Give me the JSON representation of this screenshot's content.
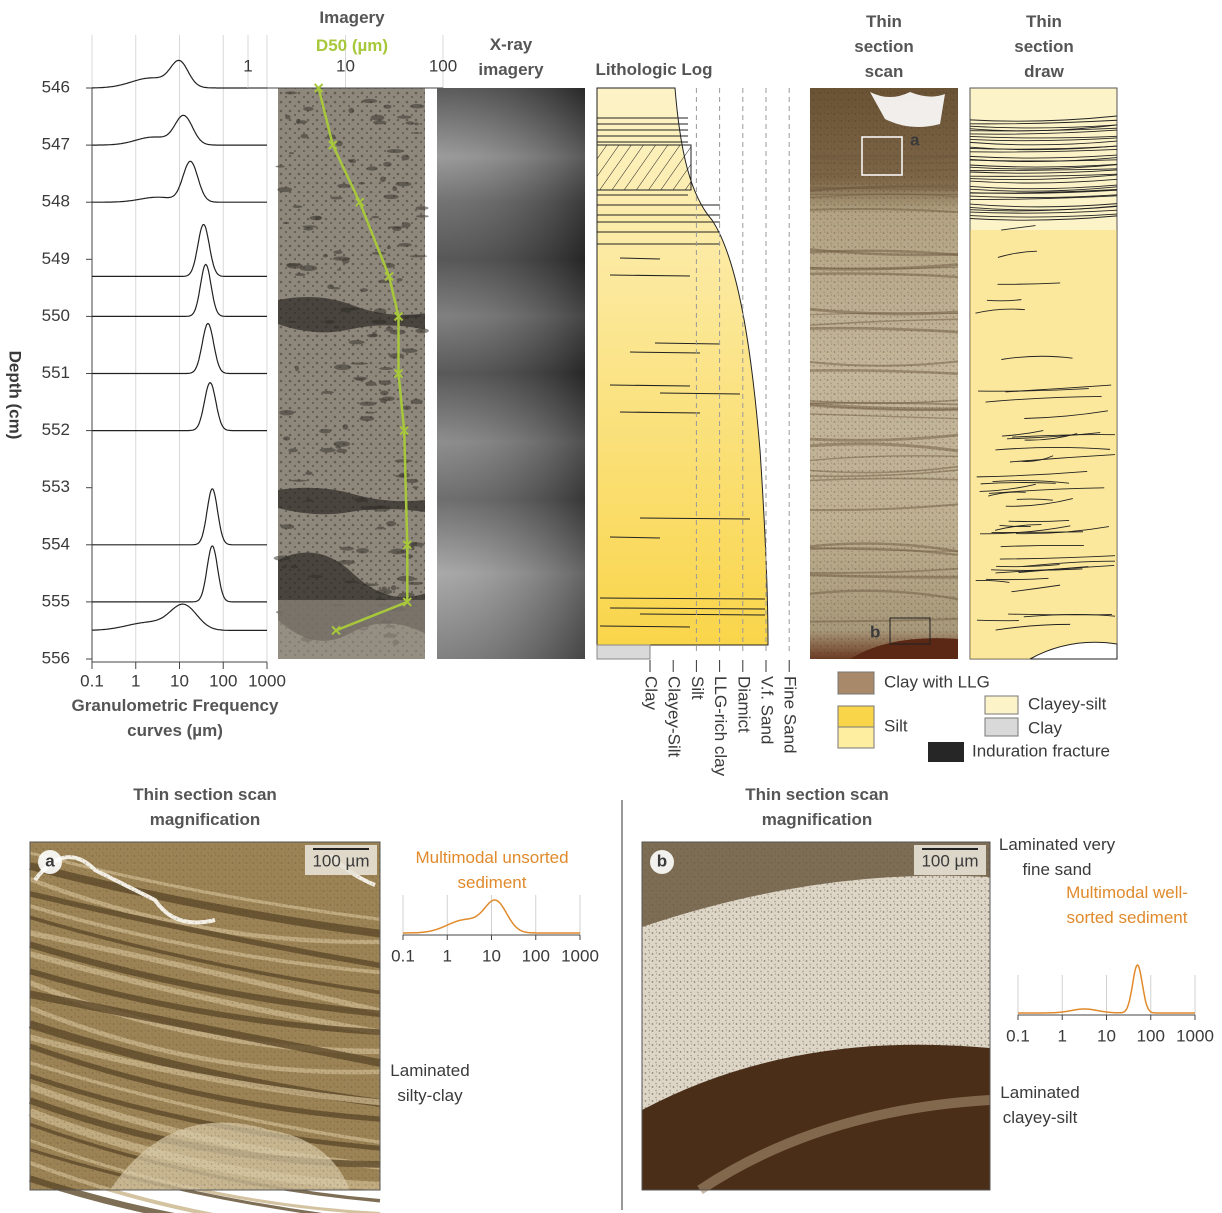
{
  "chart_data": [
    {
      "type": "line",
      "xlabel": "Granulometric Frequency curves (µm)",
      "ylabel": "Depth (cm)",
      "xscale": "log",
      "xlim": [
        0.1,
        1000
      ],
      "xticks": [
        0.1,
        1,
        10,
        100,
        1000
      ],
      "ylim": [
        546,
        556
      ],
      "yticks": [
        546,
        547,
        548,
        549,
        550,
        551,
        552,
        553,
        554,
        555,
        556
      ],
      "color": "#222222"
    },
    {
      "type": "line",
      "title": "Imagery",
      "subtitle": "D50 (µm)",
      "xscale": "log",
      "xlim": [
        1,
        100
      ],
      "xticks": [
        1,
        10,
        100
      ],
      "ylim": [
        546,
        556
      ],
      "color": "#a8c83c",
      "x": [
        5.3,
        7.4,
        14,
        28,
        35,
        35,
        40,
        43,
        43,
        8
      ],
      "y": [
        546,
        547,
        548,
        549.3,
        550,
        551,
        552,
        554,
        555,
        555.5
      ]
    },
    {
      "type": "line",
      "title": "Multimodal unsorted sediment",
      "xscale": "log",
      "xlim": [
        0.1,
        1000
      ],
      "xticks": [
        0.1,
        1,
        10,
        100,
        1000
      ],
      "color": "#e08a2c"
    },
    {
      "type": "line",
      "title": "Multimodal well-sorted sediment",
      "xscale": "log",
      "xlim": [
        0.1,
        1000
      ],
      "xticks": [
        0.1,
        1,
        10,
        100,
        1000
      ],
      "color": "#e08a2c"
    }
  ],
  "panels": {
    "xray": "X-ray imagery",
    "lithologic_log": "Lithologic Log",
    "scan": "Thin section scan",
    "draw": "Thin section draw",
    "scan_marks": [
      "a",
      "b"
    ]
  },
  "lithology_classes": [
    "Clay",
    "Clayey-Silt",
    "Silt",
    "LLG-rich clay",
    "Diamict",
    "V.f. Sand",
    "Fine Sand"
  ],
  "legend": [
    {
      "label": "Clay with LLG",
      "color": "#a88a6a"
    },
    {
      "label": "Silt",
      "color": "#f9d54a"
    },
    {
      "label": "Clayey-silt",
      "color": "#fdf3c8"
    },
    {
      "label": "Clay",
      "color": "#d9d9d9"
    },
    {
      "label": "Induration fracture",
      "color": "#262626"
    }
  ],
  "magnifications": [
    {
      "title": "Thin section scan magnification",
      "tag": "a",
      "scale": "100 µm",
      "notes": [
        "Laminated silty-clay"
      ]
    },
    {
      "title": "Thin section scan magnification",
      "tag": "b",
      "scale": "100 µm",
      "notes": [
        "Laminated very fine sand",
        "Laminated clayey-silt"
      ]
    }
  ]
}
